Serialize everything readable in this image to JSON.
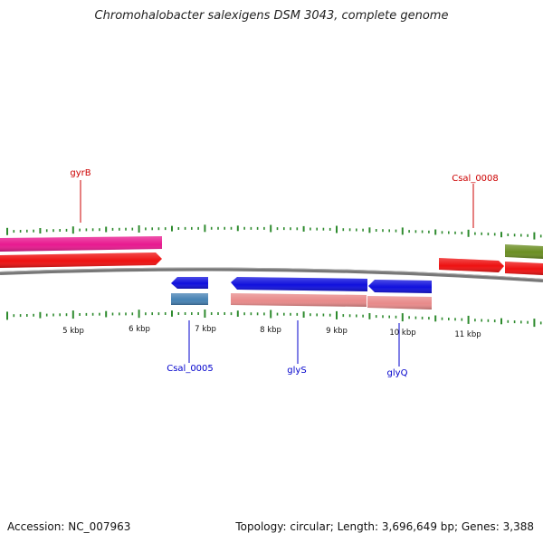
{
  "title": "Chromohalobacter salexigens DSM 3043, complete genome",
  "footer": {
    "accession": "Accession: NC_007963",
    "summary": "Topology: circular; Length: 3,696,649 bp; Genes: 3,388"
  },
  "colors": {
    "backbone": "#777777",
    "tick": "#2e8b2e",
    "label_red": "#cc0000",
    "label_blue": "#0000cc",
    "gene_magenta": "#e8198f",
    "gene_red": "#ee1111",
    "gene_olive": "#6b8e23",
    "gene_blue": "#1010dd",
    "gene_steel": "#4682b4",
    "gene_pink": "#e88a8a"
  },
  "scale_labels": [
    "5 kbp",
    "6 kbp",
    "7 kbp",
    "8 kbp",
    "9 kbp",
    "10 kbp",
    "11 kbp"
  ],
  "gene_labels": [
    {
      "name": "gyrB",
      "color": "label_red"
    },
    {
      "name": "Csal_0008",
      "color": "label_red"
    },
    {
      "name": "Csal_0005",
      "color": "label_blue"
    },
    {
      "name": "glyS",
      "color": "label_blue"
    },
    {
      "name": "glyQ",
      "color": "label_blue"
    }
  ]
}
